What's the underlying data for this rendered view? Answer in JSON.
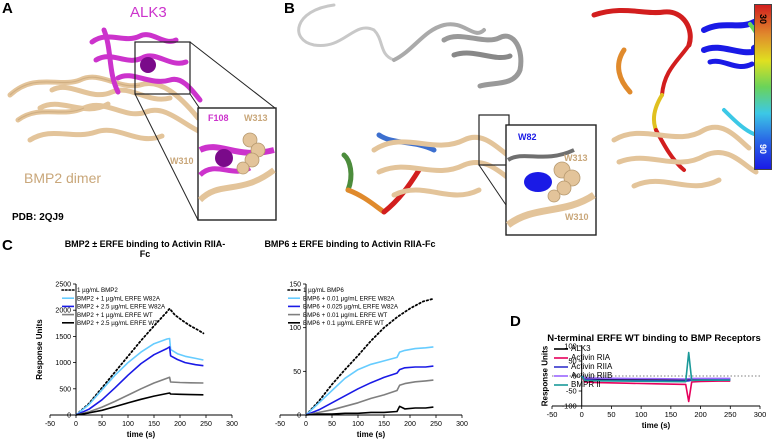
{
  "figure": {
    "panel_labels": [
      "A",
      "B",
      "C",
      "D"
    ]
  },
  "panelA": {
    "alk3_label": "ALK3",
    "bmp2_label": "BMP2 dimer",
    "pdb_label": "PDB: 2QJ9",
    "f108_label": "F108",
    "w313_label": "W313",
    "w310_label": "W310",
    "colors": {
      "alk3": "#cc33cc",
      "bmp2": "#e3c49a",
      "f108": "#7a0a8a"
    }
  },
  "panelB": {
    "w82_label": "W82",
    "w313_label": "W313",
    "w310_label": "W310",
    "colorbar_top": "30",
    "colorbar_bottom": "90",
    "colors": {
      "w82": "#1a1ae6",
      "bmp2": "#e3c49a"
    }
  },
  "chart_data": [
    {
      "type": "line",
      "title": "BMP2 ± ERFE binding to Activin RIIA-Fc",
      "xlabel": "time (s)",
      "ylabel": "Response Units",
      "xlim": [
        -50,
        300
      ],
      "ylim": [
        0,
        2500
      ],
      "xticks": [
        "-50",
        "0",
        "50",
        "100",
        "150",
        "200",
        "250",
        "300"
      ],
      "yticks": [
        "0",
        "500",
        "1000",
        "1500",
        "2000",
        "2500"
      ],
      "series": [
        {
          "name": "1 µg/mL BMP2",
          "color": "#000000",
          "dash": "dot",
          "x": [
            0,
            25,
            50,
            75,
            100,
            125,
            150,
            175,
            180,
            190,
            205,
            220,
            235,
            245
          ],
          "y": [
            0,
            220,
            520,
            820,
            1120,
            1420,
            1700,
            1970,
            2030,
            1910,
            1800,
            1700,
            1620,
            1560
          ]
        },
        {
          "name": "BMP2 + 1 µg/mL ERFE W82A",
          "color": "#66ccff",
          "x": [
            0,
            25,
            50,
            75,
            100,
            125,
            150,
            175,
            180,
            182,
            195,
            210,
            230,
            245
          ],
          "y": [
            0,
            200,
            480,
            760,
            1000,
            1200,
            1360,
            1450,
            1460,
            1250,
            1170,
            1120,
            1080,
            1050
          ]
        },
        {
          "name": "BMP2 + 2.5 µg/mL ERFE W82A",
          "color": "#1a1ae6",
          "x": [
            0,
            25,
            50,
            75,
            100,
            125,
            150,
            175,
            180,
            182,
            195,
            210,
            230,
            245
          ],
          "y": [
            0,
            110,
            290,
            520,
            760,
            980,
            1150,
            1270,
            1300,
            1130,
            1060,
            1000,
            960,
            940
          ]
        },
        {
          "name": "BMP2 + 1 µg/mL ERFE WT",
          "color": "#7f7f7f",
          "x": [
            0,
            25,
            50,
            75,
            100,
            125,
            150,
            175,
            180,
            182,
            200,
            220,
            245
          ],
          "y": [
            0,
            60,
            150,
            260,
            380,
            500,
            610,
            700,
            720,
            630,
            620,
            615,
            610
          ]
        },
        {
          "name": "BMP2 + 2.5 µg/mL ERFE WT",
          "color": "#000000",
          "x": [
            0,
            25,
            50,
            75,
            100,
            125,
            150,
            175,
            180,
            182,
            200,
            220,
            245
          ],
          "y": [
            0,
            40,
            90,
            160,
            230,
            300,
            360,
            410,
            420,
            400,
            395,
            390,
            385
          ]
        }
      ]
    },
    {
      "type": "line",
      "title": "BMP6 ± ERFE binding to Activin RIIA-Fc",
      "xlabel": "time (s)",
      "ylabel": "",
      "xlim": [
        -50,
        300
      ],
      "ylim": [
        0,
        150
      ],
      "xticks": [
        "-50",
        "0",
        "50",
        "100",
        "150",
        "200",
        "250",
        "300"
      ],
      "yticks": [
        "0",
        "50",
        "100",
        "150"
      ],
      "series": [
        {
          "name": "1 µg/mL BMP6",
          "color": "#000000",
          "dash": "dot",
          "x": [
            0,
            25,
            50,
            75,
            100,
            125,
            150,
            175,
            200,
            225,
            245
          ],
          "y": [
            0,
            16,
            35,
            52,
            68,
            85,
            100,
            112,
            122,
            130,
            133
          ]
        },
        {
          "name": "BMP6 + 0.01 µg/mL ERFE W82A",
          "color": "#66ccff",
          "x": [
            0,
            25,
            50,
            75,
            100,
            125,
            150,
            175,
            180,
            190,
            210,
            230,
            245
          ],
          "y": [
            0,
            14,
            28,
            42,
            52,
            58,
            62,
            66,
            72,
            74,
            76,
            77,
            78
          ]
        },
        {
          "name": "BMP6 + 0.025 µg/mL ERFE W82A",
          "color": "#1a1ae6",
          "x": [
            0,
            25,
            50,
            75,
            100,
            125,
            150,
            175,
            180,
            190,
            210,
            230,
            245
          ],
          "y": [
            0,
            6,
            14,
            22,
            30,
            37,
            43,
            48,
            52,
            54,
            55,
            55,
            56
          ]
        },
        {
          "name": "BMP6 + 0.01 µg/mL ERFE WT",
          "color": "#7f7f7f",
          "x": [
            0,
            25,
            50,
            75,
            100,
            125,
            150,
            175,
            180,
            190,
            210,
            230,
            245
          ],
          "y": [
            0,
            3,
            6,
            10,
            14,
            19,
            23,
            28,
            34,
            36,
            38,
            39,
            40
          ]
        },
        {
          "name": "BMP6 + 0.1 µg/mL ERFE WT",
          "color": "#000000",
          "x": [
            0,
            25,
            50,
            75,
            100,
            125,
            150,
            175,
            180,
            190,
            210,
            230,
            245
          ],
          "y": [
            0,
            1,
            1,
            2,
            2,
            3,
            3,
            4,
            10,
            7,
            8,
            8,
            9
          ]
        }
      ]
    },
    {
      "type": "line",
      "title": "N-terminal ERFE WT binding to BMP Receptors",
      "xlabel": "time (s)",
      "ylabel": "Response Units",
      "xlim": [
        -50,
        300
      ],
      "ylim": [
        -100,
        100
      ],
      "xticks": [
        "-50",
        "0",
        "50",
        "100",
        "150",
        "200",
        "250",
        "300"
      ],
      "yticks": [
        "-100",
        "-50",
        "0",
        "50",
        "100"
      ],
      "series": [
        {
          "name": "ALK3",
          "color": "#000000",
          "x": [
            0,
            5,
            25,
            75,
            125,
            175,
            180,
            185,
            200,
            230,
            250
          ],
          "y": [
            0,
            -8,
            -10,
            -11,
            -12,
            -13,
            -12,
            -10,
            -10,
            -10,
            -10
          ]
        },
        {
          "name": "Activin RIA",
          "color": "#e6005c",
          "x": [
            0,
            5,
            25,
            75,
            125,
            175,
            180,
            185,
            200,
            230,
            250
          ],
          "y": [
            0,
            -20,
            -22,
            -24,
            -26,
            -28,
            -85,
            -20,
            -18,
            -17,
            -17
          ]
        },
        {
          "name": "Activin RIIA",
          "color": "#3333cc",
          "x": [
            0,
            5,
            25,
            75,
            125,
            175,
            180,
            185,
            200,
            230,
            250
          ],
          "y": [
            0,
            -12,
            -14,
            -15,
            -16,
            -17,
            -16,
            -14,
            -14,
            -13,
            -13
          ]
        },
        {
          "name": "Activin RIIB",
          "color": "#9966ff",
          "x": [
            0,
            5,
            25,
            75,
            125,
            175,
            180,
            185,
            200,
            230,
            250
          ],
          "y": [
            0,
            -6,
            -7,
            -8,
            -9,
            -10,
            -9,
            -8,
            -8,
            -8,
            -8
          ]
        },
        {
          "name": "BMPR II",
          "color": "#1a9999",
          "x": [
            0,
            5,
            25,
            75,
            125,
            175,
            180,
            185,
            200,
            230,
            250
          ],
          "y": [
            0,
            -15,
            -16,
            -17,
            -18,
            -19,
            78,
            -15,
            -14,
            -14,
            -14
          ]
        }
      ]
    }
  ]
}
